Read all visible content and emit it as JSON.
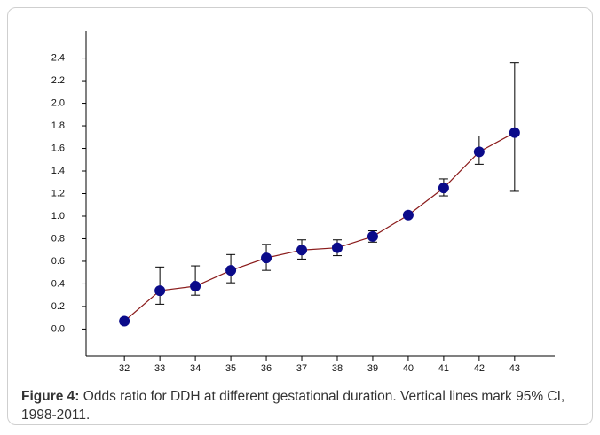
{
  "chart_data": {
    "type": "errorbar",
    "x": [
      32,
      33,
      34,
      35,
      36,
      37,
      38,
      39,
      40,
      41,
      42,
      43
    ],
    "series": [
      {
        "color": "#0b0b8a",
        "line_color": "#8b1c1c",
        "values": [
          0.07,
          0.34,
          0.38,
          0.52,
          0.63,
          0.7,
          0.72,
          0.82,
          1.01,
          1.25,
          1.57,
          1.74
        ],
        "ci_low": [
          0.05,
          0.22,
          0.3,
          0.41,
          0.52,
          0.62,
          0.65,
          0.77,
          null,
          1.18,
          1.46,
          1.22
        ],
        "ci_high": [
          0.09,
          0.55,
          0.56,
          0.66,
          0.75,
          0.79,
          0.79,
          0.87,
          null,
          1.33,
          1.71,
          2.36
        ]
      }
    ],
    "xlim": [
      30.92,
      44.13
    ],
    "xticks": [
      32,
      33,
      34,
      35,
      36,
      37,
      38,
      39,
      40,
      41,
      42,
      43
    ],
    "ylim": [
      -0.24,
      2.64
    ],
    "yticks": [
      {
        "value": 0,
        "label": "0.0"
      },
      0.2,
      0.4,
      0.6,
      0.8,
      {
        "value": 1,
        "label": "1.0"
      },
      1.2,
      1.4,
      1.6,
      1.8,
      {
        "value": 2,
        "label": "2.0"
      },
      2.2,
      2.4
    ]
  },
  "caption": {
    "label": "Figure 4:",
    "text": "Odds ratio for DDH at different gestational duration. Vertical lines mark 95% CI, 1998-2011."
  }
}
